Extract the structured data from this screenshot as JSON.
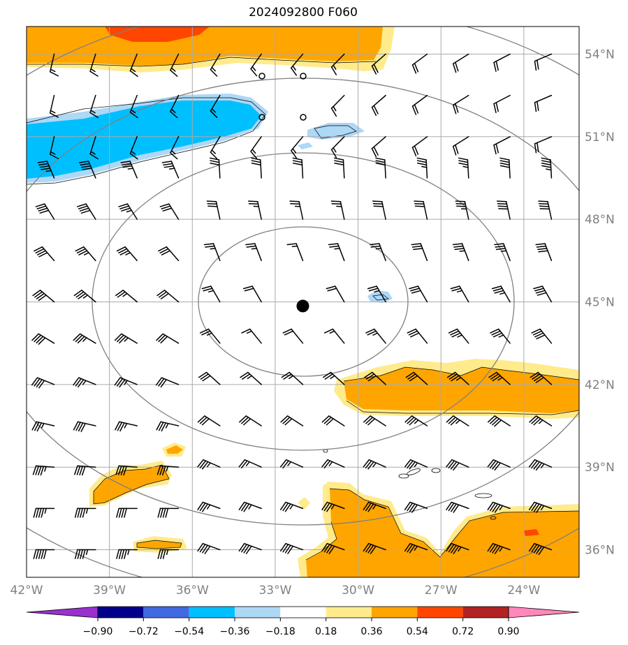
{
  "title": "2024092800 F060",
  "map": {
    "lon_range": [
      -42,
      -22
    ],
    "lat_range": [
      35,
      55
    ],
    "lon_ticks": [
      {
        "value": -42,
        "label": "42°W"
      },
      {
        "value": -39,
        "label": "39°W"
      },
      {
        "value": -36,
        "label": "36°W"
      },
      {
        "value": -33,
        "label": "33°W"
      },
      {
        "value": -30,
        "label": "30°W"
      },
      {
        "value": -27,
        "label": "27°W"
      },
      {
        "value": -24,
        "label": "24°W"
      }
    ],
    "lat_ticks": [
      {
        "value": 54,
        "label": "54°N"
      },
      {
        "value": 51,
        "label": "51°N"
      },
      {
        "value": 48,
        "label": "48°N"
      },
      {
        "value": 45,
        "label": "45°N"
      },
      {
        "value": 42,
        "label": "42°N"
      },
      {
        "value": 39,
        "label": "39°N"
      },
      {
        "value": 36,
        "label": "36°N"
      }
    ],
    "storm_center": {
      "lon": -32,
      "lat": 44.85
    },
    "grid_color": "#aaaaaa",
    "ring_color": "#808080"
  },
  "colorbar": {
    "levels": [
      "−0.90",
      "−0.72",
      "−0.54",
      "−0.36",
      "−0.18",
      "0.18",
      "0.36",
      "0.54",
      "0.72",
      "0.90"
    ],
    "colors": [
      "#9932CC",
      "#00008B",
      "#4169E1",
      "#00BFFF",
      "#ADD8F6",
      "#FFFFFF",
      "#FFEB8B",
      "#FFA500",
      "#FF4500",
      "#B22222",
      "#FF88BB"
    ]
  }
}
